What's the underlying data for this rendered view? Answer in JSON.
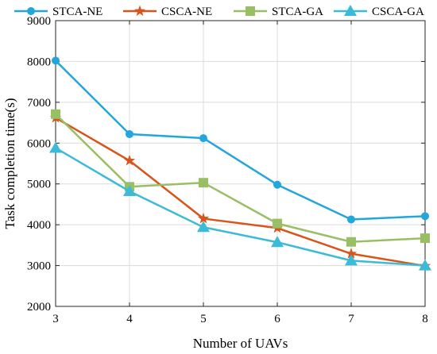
{
  "chart_data": {
    "type": "line",
    "xlabel": "Number of UAVs",
    "ylabel": "Task completion time(s)",
    "x": [
      3,
      4,
      5,
      6,
      7,
      8
    ],
    "xlim": [
      3,
      8
    ],
    "ylim": [
      2000,
      9000
    ],
    "xticks": [
      "3",
      "4",
      "5",
      "6",
      "7",
      "8"
    ],
    "yticks": [
      "2000",
      "3000",
      "4000",
      "5000",
      "6000",
      "7000",
      "8000",
      "9000"
    ],
    "grid": true,
    "legend_position": "top",
    "series": [
      {
        "name": "STCA-NE",
        "values": [
          8020,
          6220,
          6120,
          4980,
          4130,
          4210
        ],
        "color": "#22a6dc",
        "marker": "circle"
      },
      {
        "name": "CSCA-NE",
        "values": [
          6620,
          5570,
          4150,
          3920,
          3290,
          2990
        ],
        "color": "#d9541a",
        "marker": "star"
      },
      {
        "name": "STCA-GA",
        "values": [
          6710,
          4930,
          5030,
          4030,
          3580,
          3670
        ],
        "color": "#98bf63",
        "marker": "square"
      },
      {
        "name": "CSCA-GA",
        "values": [
          5880,
          4820,
          3940,
          3570,
          3120,
          3000
        ],
        "color": "#3cbbd9",
        "marker": "triangle"
      }
    ]
  }
}
